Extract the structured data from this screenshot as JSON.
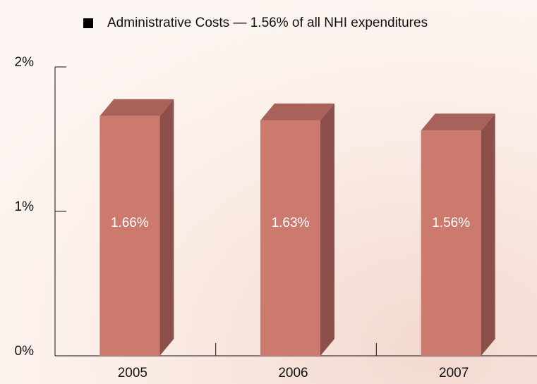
{
  "chart_data": {
    "type": "bar3d",
    "categories": [
      "2005",
      "2006",
      "2007"
    ],
    "series": [
      {
        "name": "Administrative Costs — 1.56% of all NHI expenditures",
        "color": "#cd7a6e",
        "values": [
          1.66,
          1.63,
          1.56
        ],
        "value_labels": [
          "1.66%",
          "1.63%",
          "1.56%"
        ]
      }
    ],
    "legend_color": "#000000",
    "ylim": [
      0,
      2
    ],
    "yticks": [
      {
        "value": 0,
        "label": "0%"
      },
      {
        "value": 1,
        "label": "1%"
      },
      {
        "value": 2,
        "label": "2%"
      }
    ]
  }
}
